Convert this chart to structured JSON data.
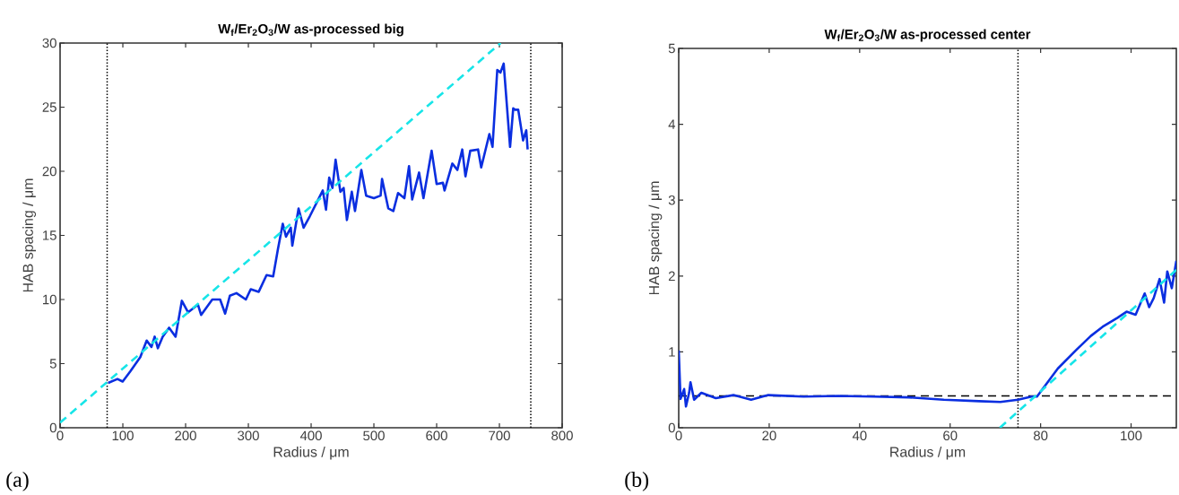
{
  "chart_data": [
    {
      "type": "line",
      "title": "W$_{f}$/Er$_{2}$O$_{3}$/W as-processed big",
      "xlabel": "Radius / μm",
      "ylabel": "HAB spacing / μm",
      "xlim": [
        0,
        800
      ],
      "xticks": [
        0,
        100,
        200,
        300,
        400,
        500,
        600,
        700,
        800
      ],
      "ylim": [
        0,
        30
      ],
      "yticks": [
        0,
        5,
        10,
        15,
        20,
        25,
        30
      ],
      "series": [
        {
          "color": "#0a2ee0",
          "line_style": "solid",
          "x": [
            76.7,
            91.4,
            99.7,
            112,
            127.8,
            138,
            145.6,
            150.7,
            155.8,
            163.5,
            173.7,
            184,
            194,
            204,
            219.6,
            224.7,
            242.5,
            255,
            263,
            270.6,
            281,
            296,
            303.8,
            316.5,
            329,
            339.5,
            347,
            354.8,
            360,
            367.6,
            370,
            380,
            388,
            398,
            418.6,
            423.7,
            428.8,
            434,
            439,
            446.6,
            451.8,
            457,
            464.8,
            469.9,
            480,
            487.7,
            500,
            510.7,
            513,
            523,
            531,
            538.5,
            548.6,
            556,
            561,
            572,
            579,
            592,
            600,
            610,
            612.6,
            625,
            633,
            640.8,
            645.9,
            653.6,
            666,
            671,
            684,
            689,
            696.6,
            701.7,
            706.8,
            717,
            722,
            725,
            730,
            737.7,
            742.8,
            745
          ],
          "values": [
            3.5,
            3.8,
            3.6,
            4.4,
            5.5,
            6.8,
            6.3,
            7.1,
            6.2,
            7.1,
            7.8,
            7.1,
            9.9,
            9.0,
            9.6,
            8.8,
            10.0,
            10.0,
            8.9,
            10.3,
            10.5,
            10.0,
            10.8,
            10.6,
            11.9,
            11.8,
            13.9,
            15.9,
            14.9,
            15.6,
            14.2,
            17.1,
            15.6,
            16.5,
            18.5,
            17.0,
            19.5,
            18.7,
            20.9,
            18.4,
            18.7,
            16.2,
            18.4,
            16.9,
            20.1,
            18.1,
            17.9,
            18.1,
            19.4,
            17.1,
            16.9,
            18.3,
            17.9,
            20.4,
            17.8,
            19.9,
            17.9,
            21.6,
            19.0,
            19.1,
            18.5,
            20.6,
            20.1,
            21.7,
            19.6,
            21.6,
            21.7,
            20.3,
            22.9,
            21.9,
            27.9,
            27.7,
            28.4,
            21.9,
            24.9,
            24.8,
            24.8,
            22.4,
            23.2,
            21.7
          ]
        },
        {
          "type": "line",
          "color": "#17e5e8",
          "line_style": "dashed",
          "x": [
            0,
            702
          ],
          "values": [
            0.4,
            30
          ]
        }
      ],
      "ref_lines": [
        {
          "axis": "x",
          "value": 75,
          "color": "#000000",
          "line_style": "dotted"
        },
        {
          "axis": "x",
          "value": 750,
          "color": "#000000",
          "line_style": "dotted"
        }
      ],
      "annotations": [
        "(a)"
      ]
    },
    {
      "type": "line",
      "title": "W$_{f}$/Er$_{2}$O$_{3}$/W as-processed center",
      "xlabel": "Radius / μm",
      "ylabel": "HAB spacing / μm",
      "xlim": [
        0,
        110
      ],
      "xticks": [
        0,
        20,
        40,
        60,
        80,
        100
      ],
      "ylim": [
        0,
        5
      ],
      "yticks": [
        0,
        1,
        2,
        3,
        4,
        5
      ],
      "series": [
        {
          "color": "#0a2ee0",
          "line_style": "solid",
          "x": [
            0,
            0.4,
            1.2,
            1.6,
            2.3,
            2.6,
            3.4,
            5.0,
            8.2,
            12.1,
            16.0,
            19.8,
            27.6,
            35.3,
            43.1,
            50.9,
            58.6,
            66.4,
            71.1,
            75,
            78,
            79.2,
            83.8,
            87.8,
            91.1,
            93.7,
            97,
            99,
            101,
            103,
            104,
            105,
            106.3,
            107.3,
            108,
            109,
            110
          ],
          "values": [
            1.02,
            0.38,
            0.51,
            0.28,
            0.46,
            0.6,
            0.37,
            0.46,
            0.39,
            0.43,
            0.37,
            0.43,
            0.41,
            0.42,
            0.41,
            0.4,
            0.37,
            0.35,
            0.34,
            0.37,
            0.41,
            0.41,
            0.78,
            1.02,
            1.21,
            1.33,
            1.45,
            1.53,
            1.49,
            1.77,
            1.59,
            1.71,
            1.96,
            1.65,
            2.06,
            1.84,
            2.2
          ]
        },
        {
          "type": "line",
          "color": "#17e5e8",
          "line_style": "dashed",
          "x": [
            71,
            110
          ],
          "values": [
            0,
            2.08
          ]
        }
      ],
      "ref_lines": [
        {
          "axis": "x",
          "value": 75,
          "color": "#000000",
          "line_style": "dotted"
        },
        {
          "axis": "y",
          "value": 0.42,
          "color": "#000000",
          "line_style": "dashed"
        }
      ],
      "annotations": [
        "(b)"
      ]
    }
  ]
}
